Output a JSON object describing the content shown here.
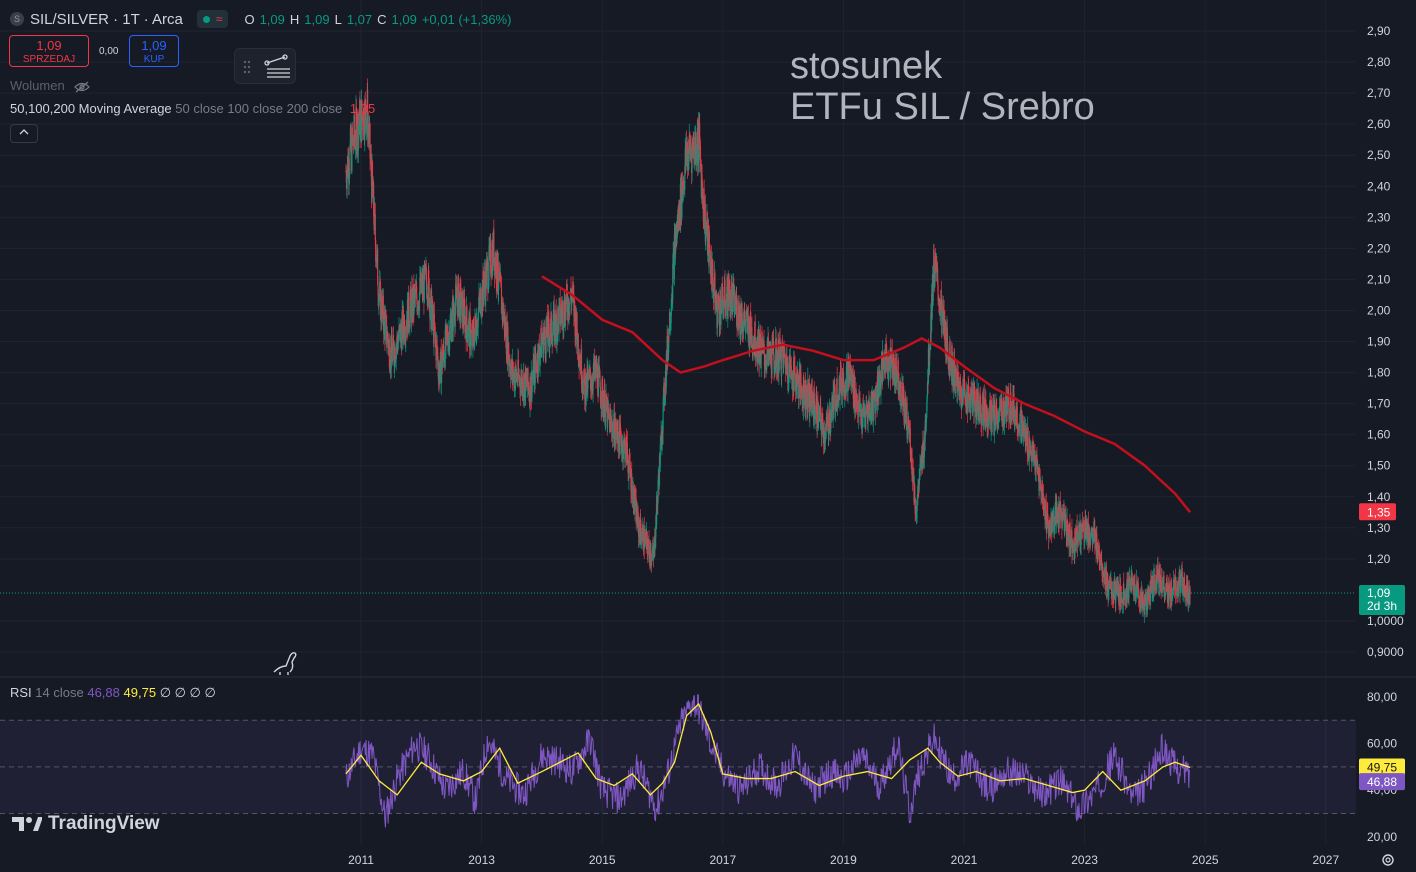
{
  "header": {
    "symbol_icon": "S",
    "title": "SIL/SILVER · 1T · Arca",
    "status_wave": "≈",
    "ohlc": {
      "o_label": "O",
      "o": "1,09",
      "h_label": "H",
      "h": "1,09",
      "l_label": "L",
      "l": "1,07",
      "c_label": "C",
      "c": "1,09",
      "change": "+0,01 (+1,36%)"
    }
  },
  "trade": {
    "sell_price": "1,09",
    "sell_label": "SPRZEDAJ",
    "spread": "0,00",
    "buy_price": "1,09",
    "buy_label": "KUP"
  },
  "indicators": {
    "volume_label": "Wolumen",
    "ma_label": "50,100,200 Moving Average",
    "ma_params": "50 close 100 close 200 close",
    "ma_value": "1,35",
    "rsi_label": "RSI",
    "rsi_params": "14 close",
    "rsi_value": "46,88",
    "rsi_ma_value": "49,75",
    "rsi_empty": "∅ ∅ ∅ ∅"
  },
  "annotation": "stosunek\nETFu SIL / Srebro",
  "logo_text": "TradingView",
  "colors": {
    "background": "#161a25",
    "up": "#089981",
    "down": "#f23645",
    "ma": "#c4101c",
    "rsi": "#7e57c2",
    "rsi_ma": "#ffeb3b"
  },
  "chart_data": [
    {
      "type": "line",
      "y_axis_labels": [
        "2,90",
        "2,80",
        "2,70",
        "2,60",
        "2,50",
        "2,40",
        "2,30",
        "2,20",
        "2,10",
        "2,00",
        "1,90",
        "1,80",
        "1,70",
        "1,60",
        "1,50",
        "1,40",
        "1,30",
        "1,20",
        "1,0000",
        "0,9000"
      ],
      "x_axis_labels": [
        "2011",
        "2013",
        "2015",
        "2017",
        "2019",
        "2021",
        "2023",
        "2025",
        "2027"
      ],
      "ylim": [
        0.87,
        2.93
      ],
      "price_series": {
        "x": [
          2010.75,
          2010.95,
          2011.1,
          2011.3,
          2011.5,
          2011.8,
          2012.1,
          2012.3,
          2012.6,
          2012.85,
          2013.0,
          2013.2,
          2013.5,
          2013.8,
          2014.0,
          2014.2,
          2014.5,
          2014.7,
          2014.9,
          2015.1,
          2015.4,
          2015.6,
          2015.85,
          2016.0,
          2016.2,
          2016.4,
          2016.6,
          2016.7,
          2016.9,
          2017.1,
          2017.4,
          2017.7,
          2018.0,
          2018.3,
          2018.5,
          2018.7,
          2018.9,
          2019.1,
          2019.3,
          2019.5,
          2019.7,
          2019.9,
          2020.1,
          2020.2,
          2020.35,
          2020.5,
          2020.7,
          2020.9,
          2021.2,
          2021.5,
          2021.8,
          2022.0,
          2022.2,
          2022.4,
          2022.6,
          2022.8,
          2023.0,
          2023.2,
          2023.4,
          2023.6,
          2023.8,
          2024.0,
          2024.2,
          2024.4,
          2024.6,
          2024.75
        ],
        "close": [
          2.45,
          2.6,
          2.65,
          2.05,
          1.85,
          2.0,
          2.1,
          1.8,
          2.05,
          1.9,
          2.05,
          2.2,
          1.8,
          1.75,
          1.9,
          1.95,
          2.05,
          1.75,
          1.8,
          1.65,
          1.55,
          1.3,
          1.2,
          1.65,
          2.2,
          2.5,
          2.55,
          2.3,
          2.0,
          2.05,
          1.95,
          1.85,
          1.85,
          1.75,
          1.7,
          1.6,
          1.75,
          1.8,
          1.65,
          1.7,
          1.85,
          1.8,
          1.6,
          1.35,
          1.6,
          2.15,
          1.9,
          1.75,
          1.7,
          1.65,
          1.7,
          1.6,
          1.5,
          1.3,
          1.35,
          1.25,
          1.3,
          1.25,
          1.1,
          1.08,
          1.12,
          1.05,
          1.15,
          1.08,
          1.12,
          1.09
        ]
      },
      "ma200_series": {
        "x": [
          2014.0,
          2014.5,
          2015.0,
          2015.5,
          2016.0,
          2016.3,
          2016.7,
          2017.0,
          2017.5,
          2018.0,
          2018.5,
          2019.0,
          2019.5,
          2020.0,
          2020.3,
          2020.6,
          2021.0,
          2021.5,
          2022.0,
          2022.5,
          2023.0,
          2023.5,
          2024.0,
          2024.5,
          2024.75
        ],
        "values": [
          2.11,
          2.05,
          1.97,
          1.93,
          1.84,
          1.8,
          1.82,
          1.84,
          1.87,
          1.89,
          1.87,
          1.84,
          1.84,
          1.88,
          1.91,
          1.88,
          1.82,
          1.75,
          1.7,
          1.66,
          1.61,
          1.57,
          1.5,
          1.41,
          1.35
        ]
      },
      "last_price_label": "1,09",
      "countdown_label": "2d 3h",
      "ma_last_label": "1,35"
    },
    {
      "type": "line",
      "y_axis_labels": [
        "80,00",
        "60,00",
        "40,00",
        "20,00"
      ],
      "ylim": [
        15,
        85
      ],
      "band": [
        30,
        70
      ],
      "midline": 50,
      "rsi_series": {
        "x": [
          2010.75,
          2011.0,
          2011.2,
          2011.4,
          2011.6,
          2011.9,
          2012.1,
          2012.4,
          2012.7,
          2012.9,
          2013.1,
          2013.4,
          2013.7,
          2014.0,
          2014.3,
          2014.5,
          2014.8,
          2015.0,
          2015.3,
          2015.6,
          2015.9,
          2016.1,
          2016.3,
          2016.5,
          2016.6,
          2016.8,
          2017.0,
          2017.3,
          2017.6,
          2017.9,
          2018.2,
          2018.5,
          2018.8,
          2019.0,
          2019.3,
          2019.6,
          2019.9,
          2020.1,
          2020.25,
          2020.5,
          2020.8,
          2021.1,
          2021.4,
          2021.7,
          2022.0,
          2022.3,
          2022.6,
          2022.9,
          2023.2,
          2023.5,
          2023.8,
          2024.0,
          2024.3,
          2024.5,
          2024.75
        ],
        "values": [
          45,
          58,
          55,
          28,
          45,
          60,
          55,
          40,
          48,
          35,
          62,
          45,
          38,
          55,
          52,
          48,
          62,
          40,
          36,
          50,
          32,
          48,
          68,
          78,
          75,
          60,
          48,
          40,
          50,
          42,
          55,
          40,
          48,
          44,
          55,
          42,
          60,
          30,
          48,
          62,
          45,
          52,
          40,
          48,
          46,
          38,
          44,
          32,
          40,
          55,
          36,
          42,
          58,
          50,
          47
        ]
      },
      "rsi_ma_series": {
        "x": [
          2010.75,
          2011.0,
          2011.3,
          2011.6,
          2012.0,
          2012.3,
          2012.7,
          2013.0,
          2013.3,
          2013.6,
          2014.0,
          2014.3,
          2014.6,
          2014.9,
          2015.2,
          2015.5,
          2015.8,
          2016.0,
          2016.2,
          2016.4,
          2016.6,
          2016.8,
          2017.0,
          2017.4,
          2017.8,
          2018.2,
          2018.6,
          2019.0,
          2019.4,
          2019.8,
          2020.1,
          2020.4,
          2020.6,
          2020.9,
          2021.2,
          2021.6,
          2022.0,
          2022.4,
          2022.8,
          2023.0,
          2023.3,
          2023.6,
          2024.0,
          2024.3,
          2024.5,
          2024.75
        ],
        "values": [
          47,
          55,
          44,
          38,
          52,
          47,
          44,
          48,
          58,
          43,
          48,
          52,
          56,
          45,
          42,
          47,
          38,
          43,
          52,
          72,
          77,
          65,
          47,
          45,
          45,
          48,
          42,
          46,
          48,
          45,
          53,
          58,
          52,
          46,
          48,
          44,
          45,
          42,
          39,
          40,
          48,
          40,
          44,
          50,
          52,
          49.75
        ]
      },
      "rsi_last_label": "46,88",
      "rsi_ma_last_label": "49,75"
    }
  ]
}
